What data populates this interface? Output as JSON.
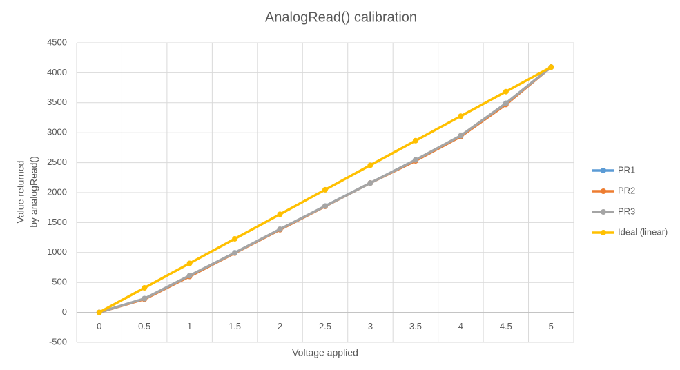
{
  "chart_data": {
    "type": "line",
    "title": "AnalogRead() calibration",
    "x_label": "Voltage applied",
    "y_label": [
      "Value returned",
      "by analogRead()"
    ],
    "categories": [
      "0",
      "0.5",
      "1",
      "1.5",
      "2",
      "2.5",
      "3",
      "3.5",
      "4",
      "4.5",
      "5"
    ],
    "series": [
      {
        "name": "PR1",
        "color": "#5b9bd5",
        "values": [
          0,
          230,
          610,
          995,
          1385,
          1775,
          2160,
          2545,
          2945,
          3490,
          4095
        ]
      },
      {
        "name": "PR2",
        "color": "#ed7d31",
        "values": [
          0,
          220,
          600,
          990,
          1380,
          1770,
          2160,
          2530,
          2935,
          3470,
          4095
        ]
      },
      {
        "name": "PR3",
        "color": "#a5a5a5",
        "values": [
          0,
          230,
          615,
          995,
          1390,
          1775,
          2160,
          2545,
          2950,
          3490,
          4095
        ]
      },
      {
        "name": "Ideal (linear)",
        "color": "#ffc000",
        "values": [
          0,
          409.5,
          819,
          1228.5,
          1638,
          2047.5,
          2457,
          2866.5,
          3276,
          3685.5,
          4095
        ]
      }
    ],
    "ylim": [
      -500,
      4500
    ],
    "yticks": [
      -500,
      0,
      500,
      1000,
      1500,
      2000,
      2500,
      3000,
      3500,
      4000,
      4500
    ],
    "grid": true,
    "legend": "right"
  }
}
